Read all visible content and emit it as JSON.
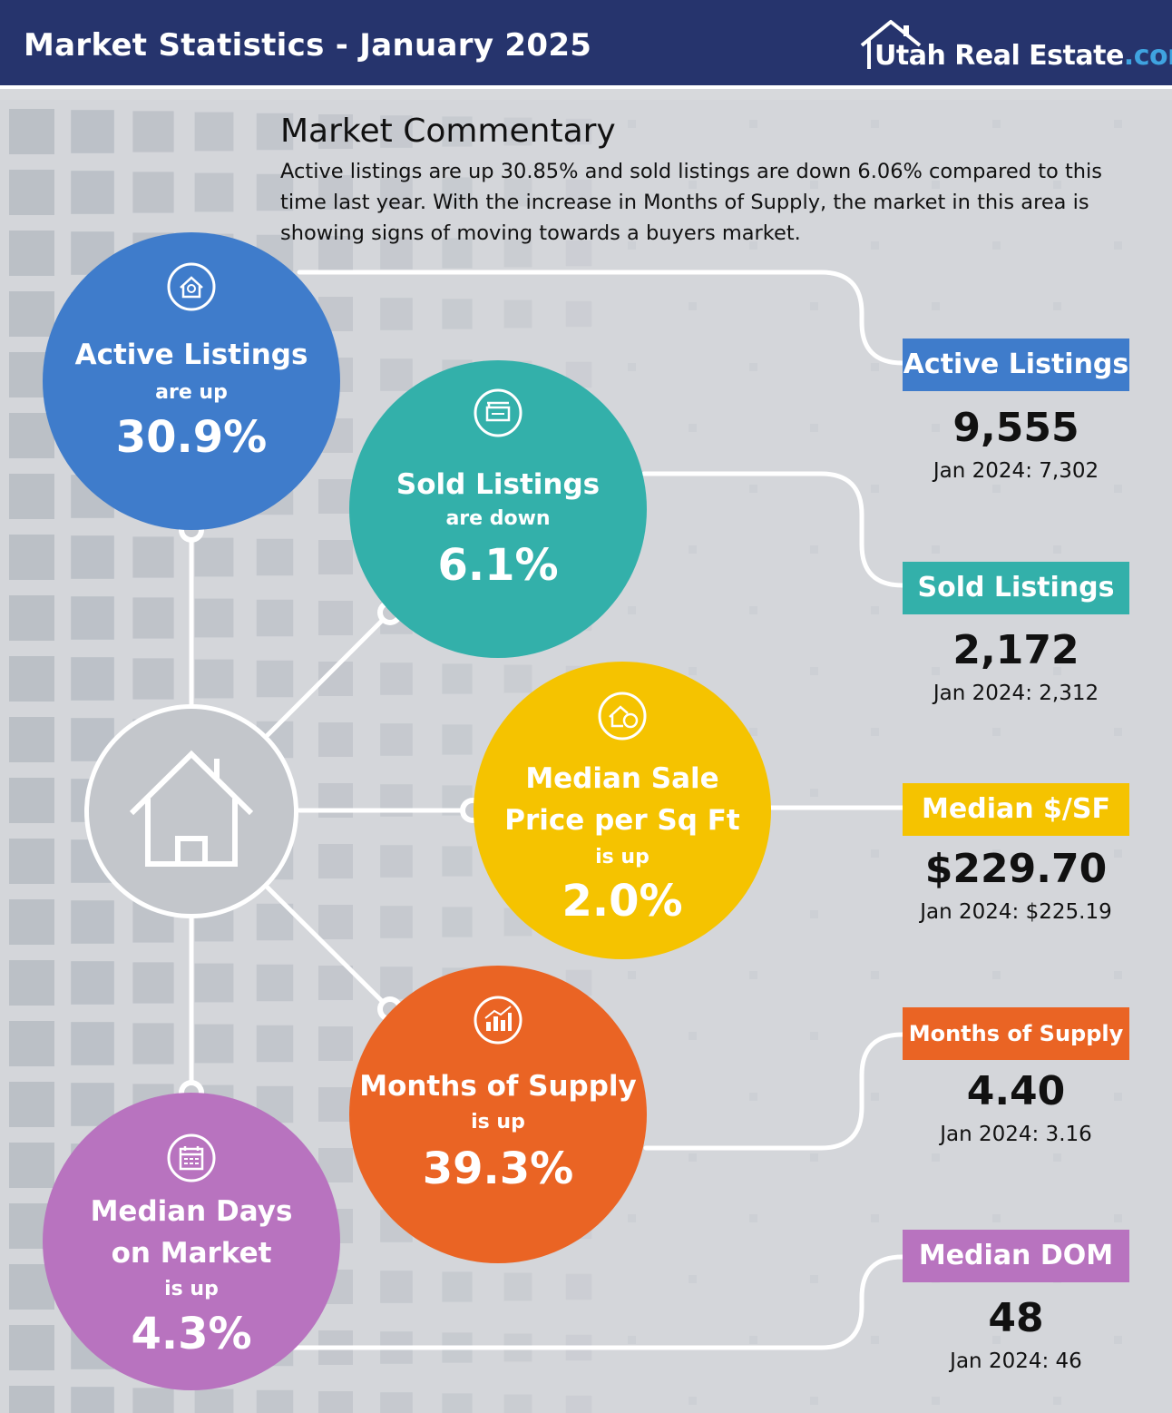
{
  "header": {
    "title": "Market Statistics - January 2025",
    "logo_main": "Utah Real Estate",
    "logo_suffix": ".com"
  },
  "commentary": {
    "title": "Market Commentary",
    "body": "Active listings are up 30.85% and sold listings are down 6.06% compared to this time last year. With the increase in Months of Supply, the market in this area is showing signs of moving towards a buyers market."
  },
  "bubbles": {
    "active": {
      "title": "Active Listings",
      "direction": "are up",
      "percent": "30.9%",
      "color": "#3f7ccb",
      "icon": "house-search-icon"
    },
    "sold": {
      "title": "Sold Listings",
      "direction": "are down",
      "percent": "6.1%",
      "color": "#33b0aa",
      "icon": "sold-sign-icon"
    },
    "price": {
      "title_line1": "Median Sale",
      "title_line2": "Price per Sq Ft",
      "direction": "is up",
      "percent": "2.0%",
      "color": "#f5c300",
      "icon": "house-price-icon"
    },
    "supply": {
      "title": "Months of Supply",
      "direction": "is up",
      "percent": "39.3%",
      "color": "#ea6424",
      "icon": "chart-icon"
    },
    "dom": {
      "title_line1": "Median Days",
      "title_line2": "on Market",
      "direction": "is up",
      "percent": "4.3%",
      "color": "#b873bf",
      "icon": "calendar-icon"
    }
  },
  "stats": {
    "active": {
      "label": "Active Listings",
      "value": "9,555",
      "previous": "Jan 2024: 7,302",
      "color": "#3f7ccb"
    },
    "sold": {
      "label": "Sold Listings",
      "value": "2,172",
      "previous": "Jan 2024: 2,312",
      "color": "#33b0aa"
    },
    "price": {
      "label": "Median $/SF",
      "value": "$229.70",
      "previous": "Jan 2024: $225.19",
      "color": "#f5c300"
    },
    "supply": {
      "label": "Months of Supply",
      "value": "4.40",
      "previous": "Jan 2024: 3.16",
      "color": "#ea6424"
    },
    "dom": {
      "label": "Median DOM",
      "value": "48",
      "previous": "Jan 2024: 46",
      "color": "#b873bf"
    }
  },
  "hub": {
    "icon": "house-icon"
  }
}
